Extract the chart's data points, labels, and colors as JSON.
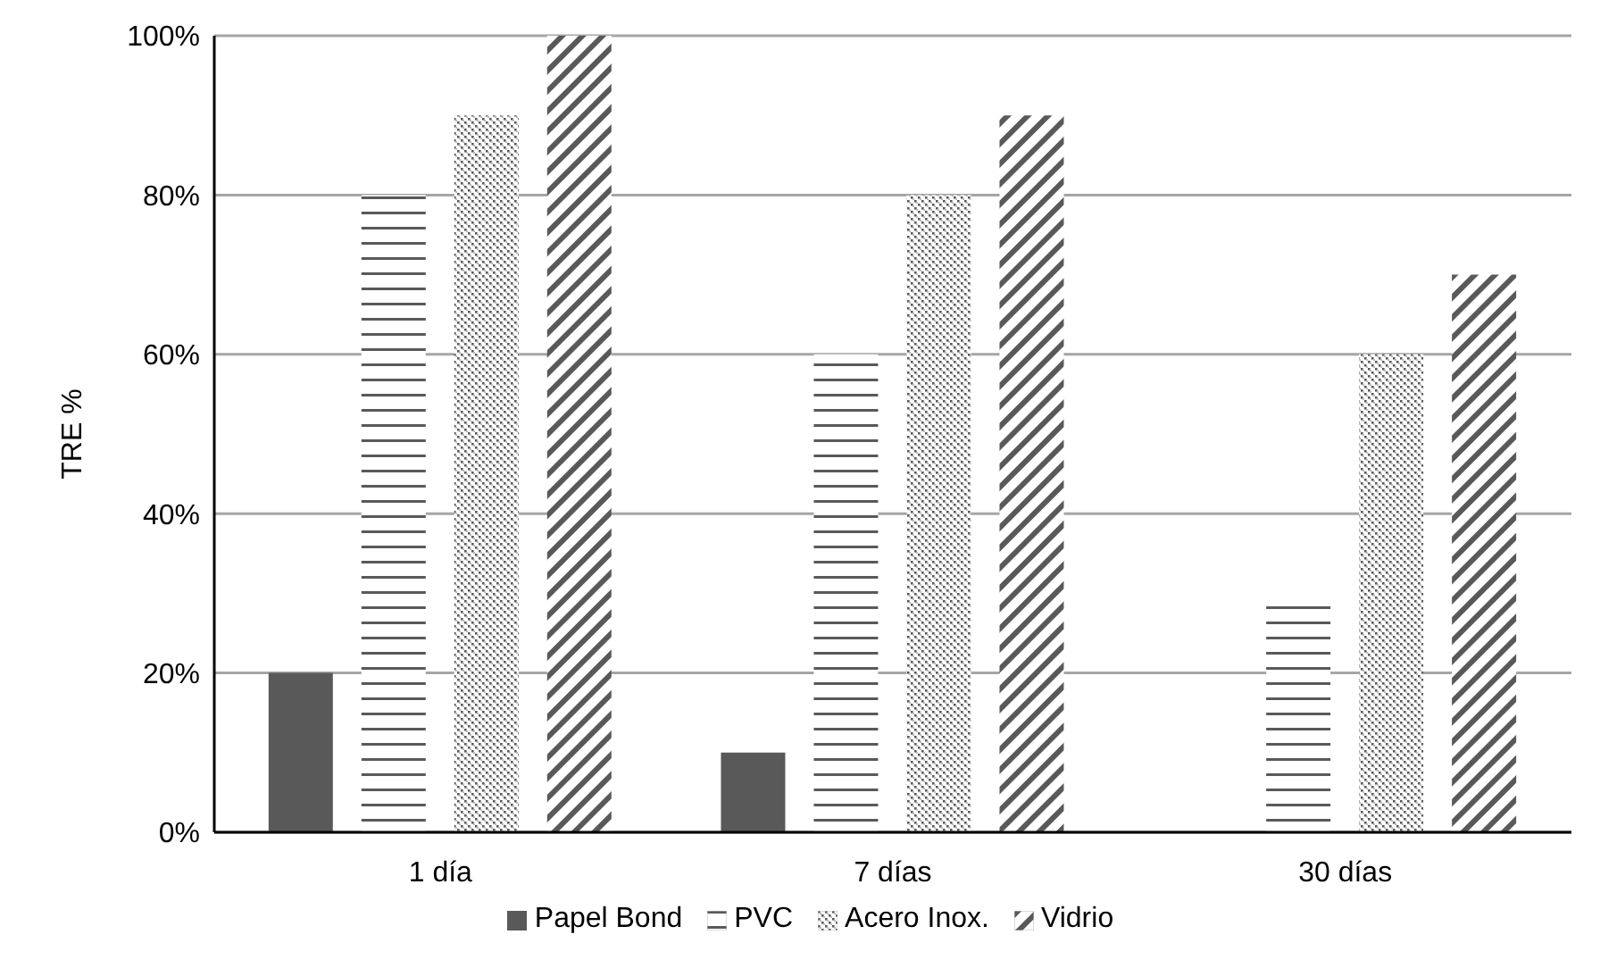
{
  "chart_data": {
    "type": "bar",
    "ylabel": "TRE %",
    "categories": [
      "1 día",
      "7 días",
      "30 días"
    ],
    "series": [
      {
        "name": "Papel Bond",
        "color": "#595959",
        "values": [
          20,
          10,
          0
        ]
      },
      {
        "name": "PVC",
        "color": "#595959",
        "values": [
          80,
          60,
          29
        ]
      },
      {
        "name": "Acero Inox.",
        "color": "#595959",
        "values": [
          90,
          80,
          60
        ]
      },
      {
        "name": "Vidrio",
        "color": "#595959",
        "values": [
          100,
          90,
          70
        ]
      }
    ],
    "ylim": [
      0,
      100
    ],
    "yticks": [
      {
        "value": 0,
        "label": "0%"
      },
      {
        "value": 20,
        "label": "20%"
      },
      {
        "value": 40,
        "label": "40%"
      },
      {
        "value": 60,
        "label": "60%"
      },
      {
        "value": 80,
        "label": "80%"
      },
      {
        "value": 100,
        "label": "100%"
      }
    ],
    "grid": "y",
    "legend": "bottom"
  }
}
